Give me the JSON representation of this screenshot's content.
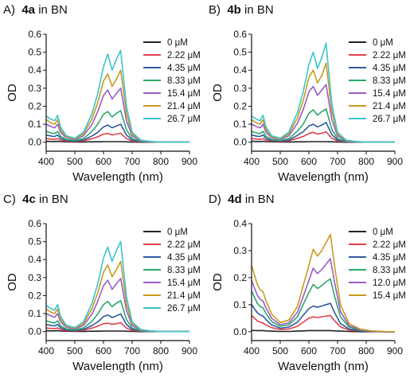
{
  "chart_data": [
    {
      "type": "line",
      "panel_letter": "A)",
      "compound": "4a",
      "solvent": "in BN",
      "xlabel": "Wavelength (nm)",
      "ylabel": "OD",
      "xlim": [
        400,
        900
      ],
      "ylim": [
        -0.05,
        0.6
      ],
      "xticks": [
        400,
        500,
        600,
        700,
        800,
        900
      ],
      "yticks": [
        0.0,
        0.1,
        0.2,
        0.3,
        0.4,
        0.5,
        0.6
      ],
      "ytick_labels": [
        "0.0",
        "0.1",
        "0.2",
        "0.3",
        "0.4",
        "0.5",
        "0.6"
      ],
      "legend_placement": "right",
      "x": [
        400,
        420,
        430,
        440,
        450,
        470,
        500,
        530,
        560,
        580,
        600,
        615,
        630,
        645,
        660,
        680,
        700,
        730,
        760,
        800,
        850,
        900
      ],
      "series": [
        {
          "name": "0 μM",
          "color": "#222222",
          "values": [
            0.005,
            0.004,
            0.004,
            0.005,
            0.003,
            0.002,
            0.001,
            0.001,
            0.002,
            0.002,
            0.003,
            0.003,
            0.003,
            0.003,
            0.003,
            0.002,
            0.001,
            0.0,
            0.0,
            0.0,
            0.0,
            0.0
          ]
        },
        {
          "name": "2.22 μM",
          "color": "#e0404a",
          "values": [
            0.02,
            0.017,
            0.016,
            0.02,
            0.012,
            0.006,
            0.004,
            0.007,
            0.02,
            0.03,
            0.045,
            0.048,
            0.04,
            0.045,
            0.05,
            0.02,
            0.006,
            0.002,
            0.001,
            0.0,
            0.0,
            0.0
          ]
        },
        {
          "name": "4.35 μM",
          "color": "#2f5a9e",
          "values": [
            0.04,
            0.033,
            0.032,
            0.04,
            0.022,
            0.01,
            0.006,
            0.012,
            0.035,
            0.055,
            0.085,
            0.095,
            0.08,
            0.09,
            0.1,
            0.04,
            0.012,
            0.003,
            0.001,
            0.0,
            0.0,
            0.0
          ]
        },
        {
          "name": "8.33 μM",
          "color": "#2aa86b",
          "values": [
            0.06,
            0.05,
            0.048,
            0.06,
            0.033,
            0.015,
            0.009,
            0.02,
            0.06,
            0.1,
            0.155,
            0.17,
            0.14,
            0.16,
            0.175,
            0.07,
            0.02,
            0.005,
            0.002,
            0.0,
            0.0,
            0.0
          ]
        },
        {
          "name": "15.4 μM",
          "color": "#9a5cc6",
          "values": [
            0.1,
            0.085,
            0.08,
            0.1,
            0.055,
            0.025,
            0.014,
            0.035,
            0.1,
            0.17,
            0.26,
            0.29,
            0.24,
            0.27,
            0.3,
            0.12,
            0.035,
            0.008,
            0.003,
            0.0,
            0.0,
            0.0
          ]
        },
        {
          "name": "21.4 μM",
          "color": "#c79a1f",
          "values": [
            0.125,
            0.105,
            0.1,
            0.125,
            0.07,
            0.03,
            0.018,
            0.045,
            0.13,
            0.22,
            0.34,
            0.38,
            0.31,
            0.35,
            0.4,
            0.16,
            0.045,
            0.01,
            0.004,
            0.0,
            0.0,
            0.0
          ]
        },
        {
          "name": "26.7 μM",
          "color": "#3cc4cc",
          "values": [
            0.145,
            0.125,
            0.12,
            0.15,
            0.085,
            0.036,
            0.022,
            0.055,
            0.16,
            0.27,
            0.42,
            0.49,
            0.4,
            0.46,
            0.51,
            0.2,
            0.055,
            0.012,
            0.005,
            0.0,
            0.0,
            0.0
          ]
        }
      ]
    },
    {
      "type": "line",
      "panel_letter": "B)",
      "compound": "4b",
      "solvent": "in BN",
      "xlabel": "Wavelength (nm)",
      "ylabel": "OD",
      "xlim": [
        400,
        900
      ],
      "ylim": [
        -0.05,
        0.6
      ],
      "xticks": [
        400,
        500,
        600,
        700,
        800,
        900
      ],
      "yticks": [
        0.0,
        0.1,
        0.2,
        0.3,
        0.4,
        0.5,
        0.6
      ],
      "ytick_labels": [
        "0.0",
        "0.1",
        "0.2",
        "0.3",
        "0.4",
        "0.5",
        "0.6"
      ],
      "legend_placement": "right",
      "x": [
        400,
        420,
        430,
        440,
        450,
        470,
        500,
        530,
        560,
        580,
        600,
        615,
        630,
        645,
        660,
        680,
        700,
        730,
        760,
        800,
        850,
        900
      ],
      "series": [
        {
          "name": "0 μM",
          "color": "#222222",
          "values": [
            0.005,
            0.004,
            0.004,
            0.005,
            0.003,
            0.002,
            0.001,
            0.001,
            0.002,
            0.002,
            0.003,
            0.003,
            0.003,
            0.003,
            0.003,
            0.002,
            0.001,
            0.0,
            0.0,
            0.0,
            0.0,
            0.0
          ]
        },
        {
          "name": "2.22 μM",
          "color": "#e0404a",
          "values": [
            0.02,
            0.017,
            0.016,
            0.02,
            0.012,
            0.006,
            0.004,
            0.007,
            0.022,
            0.032,
            0.048,
            0.055,
            0.045,
            0.05,
            0.058,
            0.022,
            0.006,
            0.002,
            0.001,
            0.0,
            0.0,
            0.0
          ]
        },
        {
          "name": "4.35 μM",
          "color": "#2f5a9e",
          "values": [
            0.04,
            0.033,
            0.032,
            0.04,
            0.022,
            0.01,
            0.006,
            0.012,
            0.038,
            0.058,
            0.09,
            0.1,
            0.085,
            0.095,
            0.11,
            0.042,
            0.012,
            0.003,
            0.001,
            0.0,
            0.0,
            0.0
          ]
        },
        {
          "name": "8.33 μM",
          "color": "#2aa86b",
          "values": [
            0.06,
            0.05,
            0.048,
            0.06,
            0.033,
            0.015,
            0.009,
            0.02,
            0.062,
            0.1,
            0.16,
            0.18,
            0.15,
            0.17,
            0.185,
            0.072,
            0.02,
            0.005,
            0.002,
            0.0,
            0.0,
            0.0
          ]
        },
        {
          "name": "15.4 μM",
          "color": "#9a5cc6",
          "values": [
            0.1,
            0.085,
            0.08,
            0.1,
            0.055,
            0.025,
            0.014,
            0.036,
            0.105,
            0.18,
            0.28,
            0.31,
            0.26,
            0.29,
            0.32,
            0.125,
            0.035,
            0.008,
            0.003,
            0.0,
            0.0,
            0.0
          ]
        },
        {
          "name": "21.4 μM",
          "color": "#c79a1f",
          "values": [
            0.125,
            0.105,
            0.1,
            0.125,
            0.07,
            0.03,
            0.018,
            0.046,
            0.135,
            0.23,
            0.36,
            0.4,
            0.33,
            0.37,
            0.44,
            0.17,
            0.045,
            0.01,
            0.004,
            0.0,
            0.0,
            0.0
          ]
        },
        {
          "name": "26.7 μM",
          "color": "#3cc4cc",
          "values": [
            0.145,
            0.125,
            0.12,
            0.15,
            0.085,
            0.036,
            0.022,
            0.056,
            0.165,
            0.28,
            0.43,
            0.5,
            0.41,
            0.47,
            0.55,
            0.21,
            0.055,
            0.012,
            0.005,
            0.0,
            0.0,
            0.0
          ]
        }
      ]
    },
    {
      "type": "line",
      "panel_letter": "C)",
      "compound": "4c",
      "solvent": "in BN",
      "xlabel": "Wavelength (nm)",
      "ylabel": "OD",
      "xlim": [
        400,
        900
      ],
      "ylim": [
        -0.05,
        0.6
      ],
      "xticks": [
        400,
        500,
        600,
        700,
        800,
        900
      ],
      "yticks": [
        0.0,
        0.1,
        0.2,
        0.3,
        0.4,
        0.5,
        0.6
      ],
      "ytick_labels": [
        "0.0",
        "0.1",
        "0.2",
        "0.3",
        "0.4",
        "0.5",
        "0.6"
      ],
      "legend_placement": "right",
      "x": [
        400,
        420,
        430,
        440,
        450,
        470,
        500,
        530,
        560,
        580,
        600,
        615,
        630,
        645,
        660,
        680,
        700,
        730,
        760,
        800,
        850,
        900
      ],
      "series": [
        {
          "name": "0 μM",
          "color": "#222222",
          "values": [
            0.005,
            0.004,
            0.004,
            0.005,
            0.003,
            0.002,
            0.001,
            0.001,
            0.002,
            0.002,
            0.003,
            0.003,
            0.003,
            0.003,
            0.003,
            0.002,
            0.001,
            0.0,
            0.0,
            0.0,
            0.0,
            0.0
          ]
        },
        {
          "name": "2.22 μM",
          "color": "#e0404a",
          "values": [
            0.02,
            0.017,
            0.016,
            0.02,
            0.012,
            0.006,
            0.004,
            0.007,
            0.02,
            0.03,
            0.044,
            0.047,
            0.04,
            0.044,
            0.05,
            0.02,
            0.006,
            0.002,
            0.001,
            0.0,
            0.0,
            0.0
          ]
        },
        {
          "name": "4.35 μM",
          "color": "#2f5a9e",
          "values": [
            0.04,
            0.033,
            0.032,
            0.04,
            0.022,
            0.01,
            0.006,
            0.012,
            0.034,
            0.054,
            0.083,
            0.093,
            0.078,
            0.088,
            0.098,
            0.04,
            0.012,
            0.003,
            0.001,
            0.0,
            0.0,
            0.0
          ]
        },
        {
          "name": "8.33 μM",
          "color": "#2aa86b",
          "values": [
            0.06,
            0.05,
            0.048,
            0.06,
            0.033,
            0.015,
            0.009,
            0.02,
            0.058,
            0.098,
            0.15,
            0.168,
            0.138,
            0.158,
            0.172,
            0.068,
            0.02,
            0.005,
            0.002,
            0.0,
            0.0,
            0.0
          ]
        },
        {
          "name": "15.4 μM",
          "color": "#9a5cc6",
          "values": [
            0.1,
            0.085,
            0.08,
            0.1,
            0.055,
            0.025,
            0.014,
            0.034,
            0.098,
            0.168,
            0.255,
            0.285,
            0.235,
            0.265,
            0.295,
            0.118,
            0.034,
            0.008,
            0.003,
            0.0,
            0.0,
            0.0
          ]
        },
        {
          "name": "21.4 μM",
          "color": "#c79a1f",
          "values": [
            0.125,
            0.105,
            0.1,
            0.125,
            0.07,
            0.03,
            0.018,
            0.044,
            0.128,
            0.215,
            0.33,
            0.37,
            0.305,
            0.345,
            0.39,
            0.155,
            0.044,
            0.01,
            0.004,
            0.0,
            0.0,
            0.0
          ]
        },
        {
          "name": "26.7 μM",
          "color": "#3cc4cc",
          "values": [
            0.145,
            0.125,
            0.12,
            0.15,
            0.085,
            0.036,
            0.022,
            0.054,
            0.158,
            0.265,
            0.41,
            0.47,
            0.39,
            0.45,
            0.5,
            0.195,
            0.054,
            0.012,
            0.005,
            0.0,
            0.0,
            0.0
          ]
        }
      ]
    },
    {
      "type": "line",
      "panel_letter": "D)",
      "compound": "4d",
      "solvent": "in BN",
      "xlabel": "Wavelength (nm)",
      "ylabel": "OD",
      "xlim": [
        400,
        900
      ],
      "ylim": [
        -0.033,
        0.4
      ],
      "xticks": [
        400,
        500,
        600,
        700,
        800,
        900
      ],
      "yticks": [
        0.0,
        0.1,
        0.2,
        0.3,
        0.4
      ],
      "ytick_labels": [
        "0.0",
        "0.1",
        "0.2",
        "0.3",
        "0.4"
      ],
      "legend_placement": "right",
      "x": [
        400,
        410,
        420,
        430,
        440,
        450,
        470,
        500,
        530,
        560,
        580,
        600,
        615,
        630,
        645,
        660,
        675,
        690,
        710,
        740,
        780,
        820,
        860,
        900
      ],
      "series": [
        {
          "name": "0 μM",
          "color": "#222222",
          "values": [
            0.005,
            0.004,
            0.004,
            0.004,
            0.004,
            0.003,
            0.002,
            0.001,
            0.001,
            0.002,
            0.003,
            0.004,
            0.004,
            0.004,
            0.004,
            0.004,
            0.004,
            0.003,
            0.002,
            0.001,
            0.0,
            0.0,
            0.0,
            0.0
          ]
        },
        {
          "name": "2.22 μM",
          "color": "#e0404a",
          "values": [
            0.06,
            0.05,
            0.04,
            0.035,
            0.032,
            0.025,
            0.015,
            0.008,
            0.01,
            0.02,
            0.035,
            0.05,
            0.055,
            0.052,
            0.055,
            0.058,
            0.06,
            0.04,
            0.018,
            0.006,
            0.002,
            0.001,
            0.0,
            0.0
          ]
        },
        {
          "name": "4.35 μM",
          "color": "#2f5a9e",
          "values": [
            0.1,
            0.085,
            0.07,
            0.062,
            0.058,
            0.045,
            0.025,
            0.013,
            0.017,
            0.035,
            0.06,
            0.085,
            0.095,
            0.09,
            0.095,
            0.1,
            0.105,
            0.07,
            0.03,
            0.01,
            0.003,
            0.001,
            0.0,
            0.0
          ]
        },
        {
          "name": "8.33 μM",
          "color": "#2aa86b",
          "values": [
            0.15,
            0.128,
            0.105,
            0.093,
            0.088,
            0.068,
            0.038,
            0.02,
            0.026,
            0.055,
            0.1,
            0.145,
            0.175,
            0.16,
            0.17,
            0.185,
            0.195,
            0.13,
            0.055,
            0.017,
            0.005,
            0.002,
            0.0,
            0.0
          ]
        },
        {
          "name": "12.0 μM",
          "color": "#9a5cc6",
          "values": [
            0.19,
            0.162,
            0.135,
            0.12,
            0.113,
            0.088,
            0.05,
            0.026,
            0.033,
            0.072,
            0.13,
            0.19,
            0.235,
            0.215,
            0.23,
            0.25,
            0.27,
            0.18,
            0.075,
            0.022,
            0.007,
            0.002,
            0.0,
            0.0
          ]
        },
        {
          "name": "15.4 μM",
          "color": "#c79a1f",
          "values": [
            0.245,
            0.21,
            0.175,
            0.155,
            0.148,
            0.115,
            0.065,
            0.034,
            0.043,
            0.093,
            0.17,
            0.245,
            0.305,
            0.28,
            0.3,
            0.33,
            0.36,
            0.24,
            0.1,
            0.03,
            0.009,
            0.003,
            0.001,
            0.0
          ]
        }
      ]
    }
  ]
}
